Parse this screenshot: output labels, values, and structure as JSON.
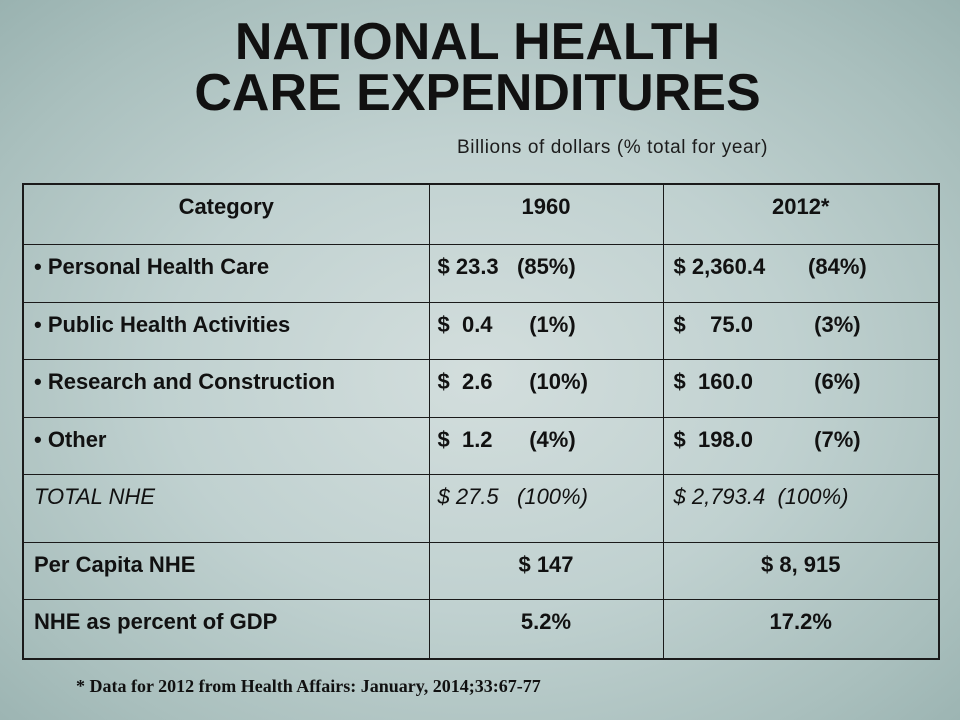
{
  "slide": {
    "title_line1": "NATIONAL HEALTH",
    "title_line2": "CARE EXPENDITURES",
    "subtitle": "Billions of dollars (% total for year)"
  },
  "table": {
    "headers": {
      "category": "Category",
      "col_1960": "1960",
      "col_2012": "2012*"
    },
    "rows": [
      {
        "category": "• Personal Health Care",
        "v1960": "$ 23.3   (85%)",
        "v2012": "$ 2,360.4       (84%)"
      },
      {
        "category": "• Public Health Activities",
        "v1960": "$  0.4      (1%)",
        "v2012": "$    75.0          (3%)"
      },
      {
        "category": "• Research and Construction",
        "v1960": "$  2.6      (10%)",
        "v2012": "$  160.0          (6%)"
      },
      {
        "category": "• Other",
        "v1960": "$  1.2      (4%)",
        "v2012": "$  198.0          (7%)"
      },
      {
        "category": "TOTAL NHE",
        "v1960": "$ 27.5   (100%)",
        "v2012": "$ 2,793.4  (100%)"
      },
      {
        "category": "Per Capita NHE",
        "v1960": "$ 147",
        "v2012": "$ 8, 915"
      },
      {
        "category": "NHE as percent of GDP",
        "v1960": "5.2%",
        "v2012": "17.2%"
      }
    ]
  },
  "footnote": "* Data for 2012 from Health Affairs: January, 2014;33:67-77",
  "colors": {
    "background_center": "#d3dedd",
    "background_mid": "#c0d1d0",
    "background_edge": "#93adab",
    "text": "#111111",
    "table_border": "#1a1a1a"
  }
}
